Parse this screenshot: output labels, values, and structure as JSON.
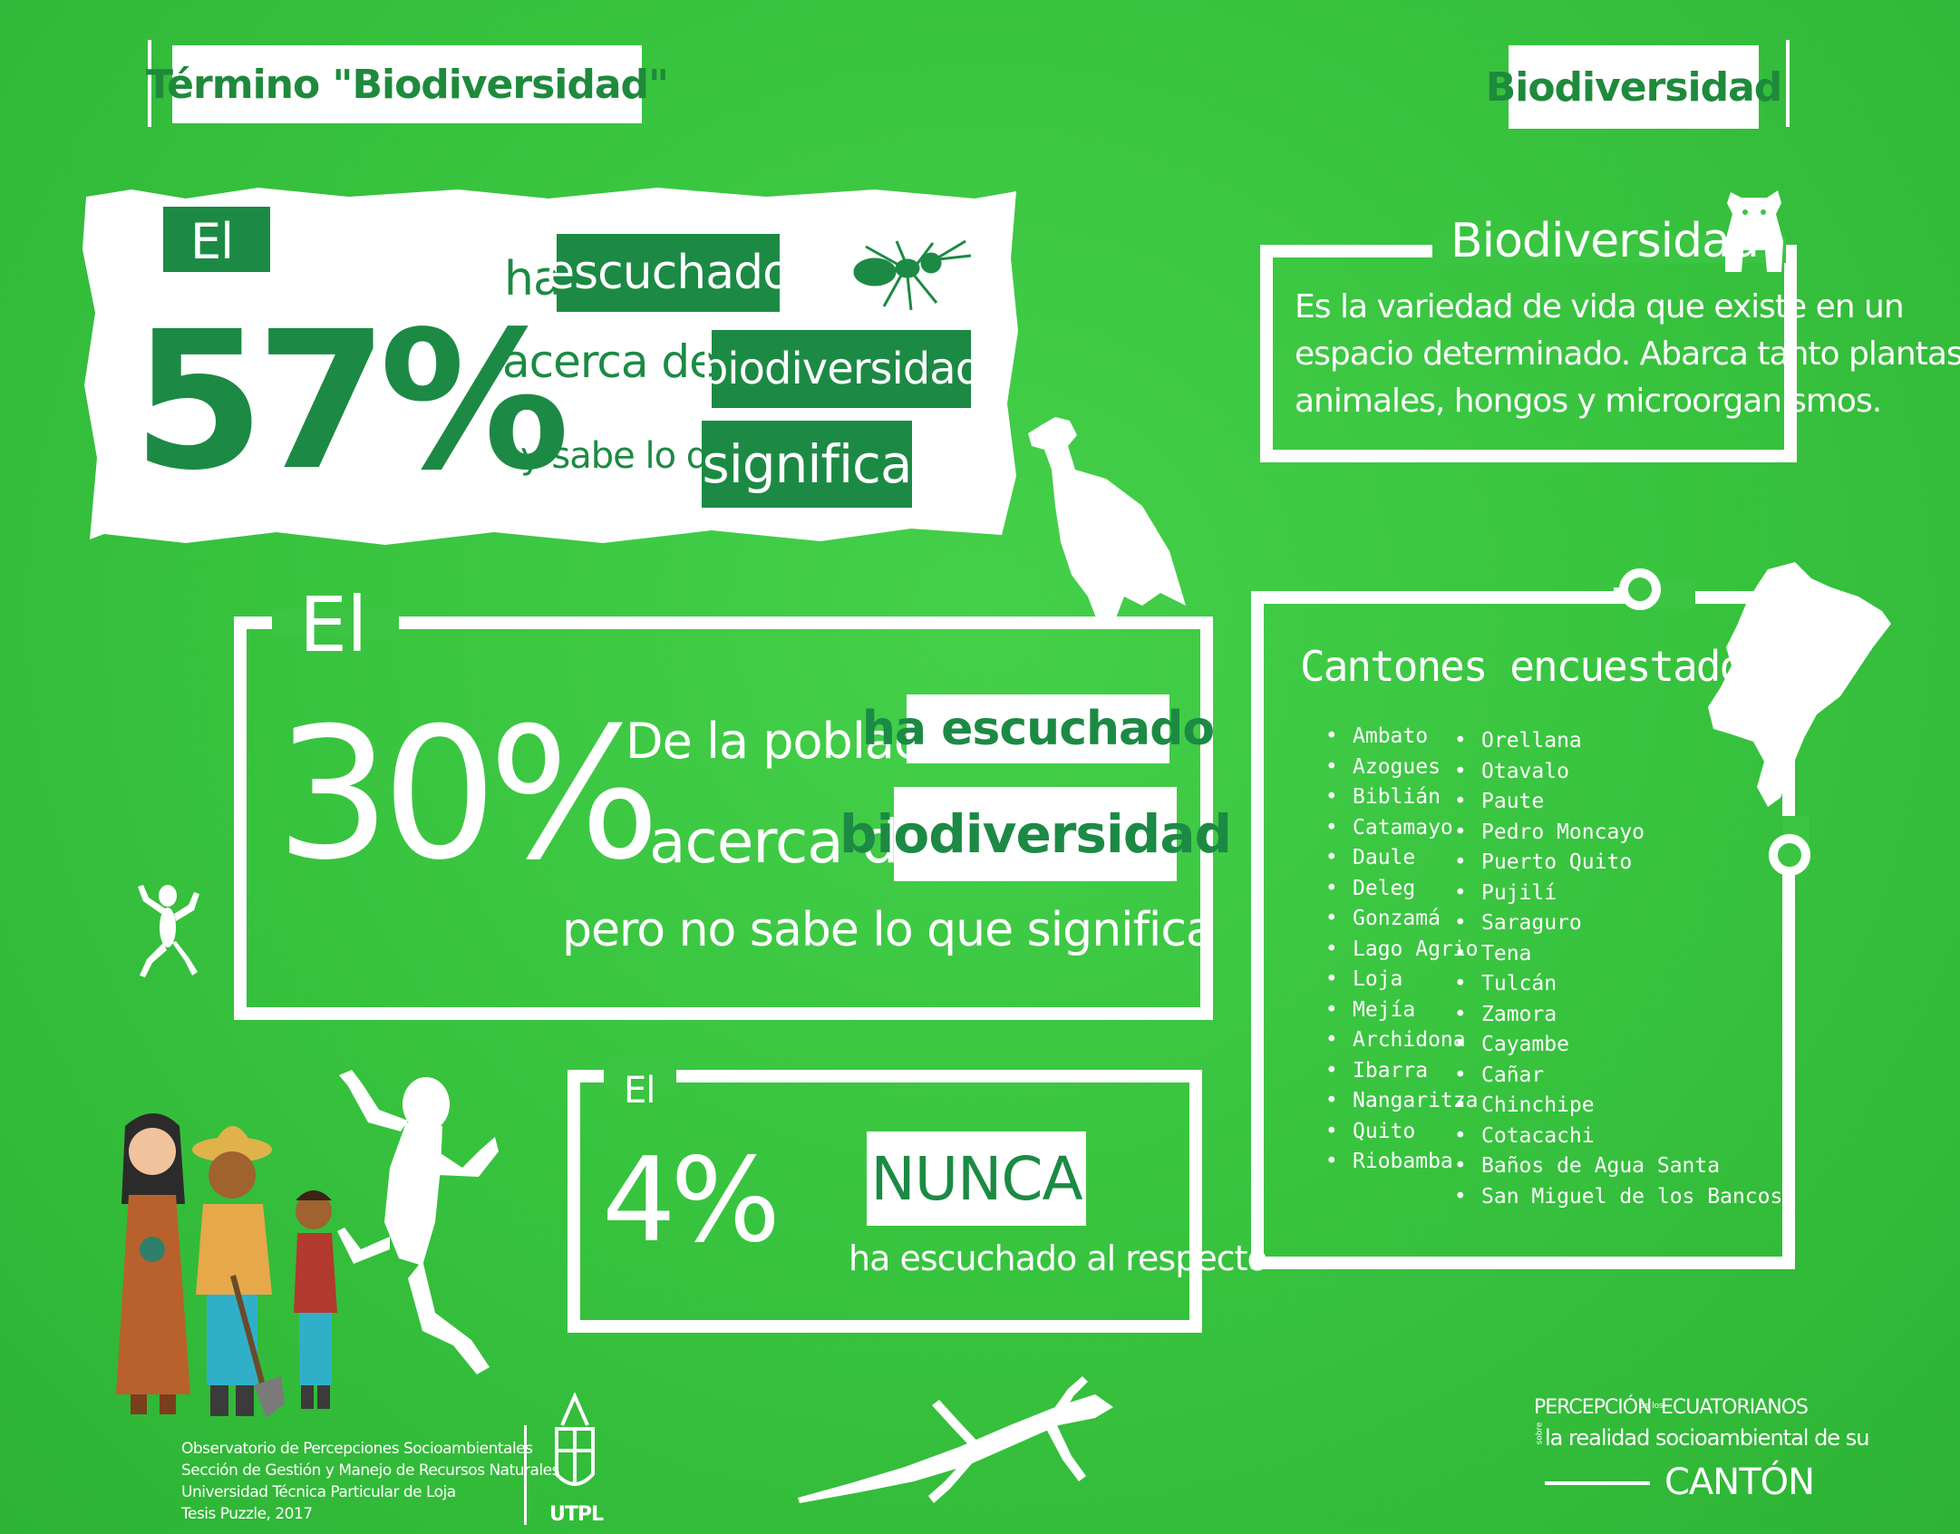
{
  "header": {
    "left_title": "Término \"Biodiversidad\"",
    "right_title": "Biodiversidad"
  },
  "stat57": {
    "el": "El",
    "percent": "57%",
    "line1_pre": "ha",
    "line1_box": "escuchado",
    "line2_pre": "acerca de la",
    "line2_box": "biodiversidad",
    "line3_pre": "y sabe lo que",
    "line3_box": "significa"
  },
  "stat30": {
    "el": "El",
    "percent": "30%",
    "line1_pre": "De la población",
    "line1_box": "ha escuchado",
    "line2_pre": "acerca de la",
    "line2_box": "biodiversidad",
    "line3": "pero no sabe lo que significa"
  },
  "stat4": {
    "el": "El",
    "percent": "4%",
    "box": "NUNCA",
    "line": "ha escuchado al respecto"
  },
  "definition": {
    "title": "Biodiversidad",
    "text_lines": [
      "Es la variedad de vida que existe en un",
      "espacio determinado. Abarca tanto plantas,",
      "animales, hongos y microorganismos."
    ]
  },
  "cantons": {
    "title": "Cantones encuestados",
    "col1": [
      "Ambato",
      "Azogues",
      "Biblián",
      "Catamayo",
      "Daule",
      "Deleg",
      "Gonzamá",
      "Lago Agrio",
      "Loja",
      "Mejía",
      "Archidona",
      "Ibarra",
      "Nangaritza",
      "Quito",
      "Riobamba"
    ],
    "col2": [
      "Orellana",
      "Otavalo",
      "Paute",
      "Pedro Moncayo",
      "Puerto Quito",
      "Pujilí",
      "Saraguro",
      "Tena",
      "Tulcán",
      "Zamora",
      "Cayambe",
      "Cañar",
      "Chinchipe",
      "Cotacachi",
      "Baños de Agua Santa",
      "San Miguel de los Bancos"
    ]
  },
  "footer": {
    "credits": [
      "Observatorio de Percepciones Socioambientales",
      "Sección de Gestión y Manejo de Recursos Naturales",
      "Universidad Técnica Particular de Loja",
      "Tesis Puzzle, 2017"
    ],
    "utpl": "UTPL",
    "brand_line1_a": "PERCEPCIÓN",
    "brand_small1": "de los",
    "brand_line1_b": "ECUATORIANOS",
    "brand_small2": "sobre",
    "brand_line2": "la realidad socioambiental de su",
    "brand_line3": "CANTÓN"
  },
  "colors": {
    "background": "#3cc443",
    "accent_dark": "#1c8a44",
    "white": "#ffffff"
  }
}
